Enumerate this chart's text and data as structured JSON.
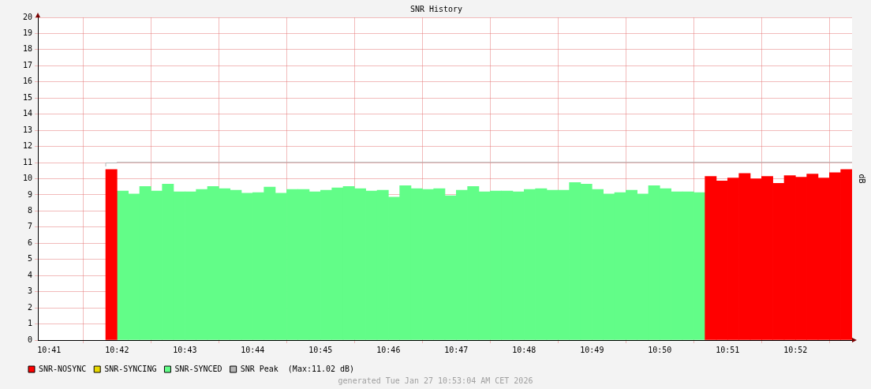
{
  "chart_data": {
    "type": "bar",
    "title": "SNR History",
    "ylabel": "dB",
    "xlim": [
      10.68056,
      10.88056
    ],
    "xticks": [
      {
        "value": 10.68333,
        "label": "10:41"
      },
      {
        "value": 10.7,
        "label": "10:42"
      },
      {
        "value": 10.71667,
        "label": "10:43"
      },
      {
        "value": 10.73333,
        "label": "10:44"
      },
      {
        "value": 10.75,
        "label": "10:45"
      },
      {
        "value": 10.76667,
        "label": "10:46"
      },
      {
        "value": 10.78333,
        "label": "10:47"
      },
      {
        "value": 10.8,
        "label": "10:48"
      },
      {
        "value": 10.81667,
        "label": "10:49"
      },
      {
        "value": 10.83333,
        "label": "10:50"
      },
      {
        "value": 10.85,
        "label": "10:51"
      },
      {
        "value": 10.86667,
        "label": "10:52"
      }
    ],
    "ylim": [
      0,
      20
    ],
    "yticks": [
      0,
      1,
      2,
      3,
      4,
      5,
      6,
      7,
      8,
      9,
      10,
      11,
      12,
      13,
      14,
      15,
      16,
      17,
      18,
      19,
      20
    ],
    "grid": true,
    "legend": "bottom left",
    "annotations": [
      "generated Tue Jan 27 10:53:04 AM CET 2026"
    ],
    "series": [
      {
        "name": "SNR-NOSYNC",
        "color": "#ff0000",
        "x": [
          10.69861,
          10.84583,
          10.84861,
          10.85139,
          10.85417,
          10.85694,
          10.85972,
          10.8625,
          10.86528,
          10.86806,
          10.87083,
          10.87361,
          10.87639,
          10.87917
        ],
        "values": [
          10.57,
          10.14,
          9.86,
          10.05,
          10.33,
          10.0,
          10.14,
          9.71,
          10.19,
          10.1,
          10.29,
          10.05,
          10.38,
          10.57
        ]
      },
      {
        "name": "SNR-SYNCING",
        "color": "#e8d800"
      },
      {
        "name": "SNR-SYNCED",
        "color": "#62fd88",
        "x": [
          10.70139,
          10.70417,
          10.70694,
          10.70972,
          10.7125,
          10.71528,
          10.71806,
          10.72083,
          10.72361,
          10.72639,
          10.72917,
          10.73194,
          10.73472,
          10.7375,
          10.74028,
          10.74306,
          10.74583,
          10.74861,
          10.75139,
          10.75417,
          10.75694,
          10.75972,
          10.7625,
          10.76528,
          10.76806,
          10.77083,
          10.77361,
          10.77639,
          10.77917,
          10.78194,
          10.78472,
          10.7875,
          10.79028,
          10.79306,
          10.79583,
          10.79861,
          10.80139,
          10.80417,
          10.80694,
          10.80972,
          10.8125,
          10.81528,
          10.81806,
          10.82083,
          10.82361,
          10.82639,
          10.82917,
          10.83194,
          10.83472,
          10.8375,
          10.84028,
          10.84306
        ],
        "values": [
          9.24,
          9.05,
          9.52,
          9.24,
          9.67,
          9.19,
          9.19,
          9.33,
          9.52,
          9.38,
          9.29,
          9.1,
          9.14,
          9.48,
          9.1,
          9.33,
          9.33,
          9.19,
          9.29,
          9.43,
          9.52,
          9.38,
          9.24,
          9.29,
          8.86,
          9.57,
          9.38,
          9.33,
          9.38,
          8.95,
          9.29,
          9.52,
          9.19,
          9.24,
          9.24,
          9.19,
          9.33,
          9.38,
          9.29,
          9.29,
          9.76,
          9.67,
          9.33,
          9.05,
          9.14,
          9.29,
          9.05,
          9.57,
          9.38,
          9.19,
          9.19,
          9.14
        ]
      },
      {
        "name": "SNR Peak  (Max:11.02 dB)",
        "type": "step",
        "color": "#b4b4b4",
        "x": [
          10.69722,
          10.7,
          10.86389,
          10.88056
        ],
        "values": [
          10.76,
          10.98,
          11.02,
          11.02
        ]
      }
    ]
  }
}
